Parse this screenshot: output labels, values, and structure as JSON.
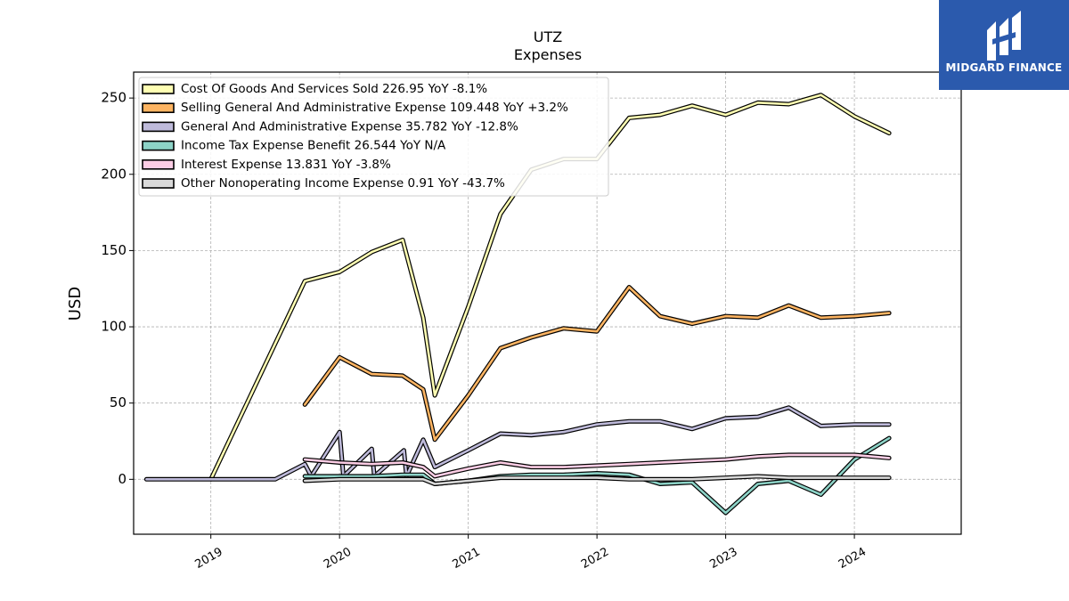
{
  "brand": {
    "name": "MIDGARD FINANCE",
    "bg_color": "#2b5aad"
  },
  "chart_data": {
    "type": "line",
    "title": "UTZ",
    "subtitle": "Expenses",
    "ylabel": "USD",
    "xlabel": "",
    "ylim": [
      -36,
      267
    ],
    "xlim": [
      2018.4,
      2024.83
    ],
    "grid": true,
    "legend_position": "top-left",
    "x_ticks": [
      {
        "value": 2019,
        "label": "2019"
      },
      {
        "value": 2020,
        "label": "2020"
      },
      {
        "value": 2021,
        "label": "2021"
      },
      {
        "value": 2022,
        "label": "2022"
      },
      {
        "value": 2023,
        "label": "2023"
      },
      {
        "value": 2024,
        "label": "2024"
      }
    ],
    "y_ticks": [
      0,
      50,
      100,
      150,
      200,
      250
    ],
    "series": [
      {
        "name": "Cost Of Goods And Services Sold  226.95 YoY -8.1%",
        "color": "#ffffb3",
        "points": [
          [
            2019.0,
            0
          ],
          [
            2019.73,
            130
          ],
          [
            2020.0,
            136
          ],
          [
            2020.25,
            149
          ],
          [
            2020.49,
            157
          ],
          [
            2020.65,
            106
          ],
          [
            2020.74,
            55
          ],
          [
            2021.0,
            113
          ],
          [
            2021.25,
            174
          ],
          [
            2021.49,
            203
          ],
          [
            2021.74,
            210
          ],
          [
            2022.0,
            210
          ],
          [
            2022.25,
            237
          ],
          [
            2022.49,
            239
          ],
          [
            2022.74,
            245
          ],
          [
            2023.0,
            239
          ],
          [
            2023.25,
            247
          ],
          [
            2023.49,
            246
          ],
          [
            2023.74,
            252
          ],
          [
            2024.0,
            238
          ],
          [
            2024.27,
            227
          ]
        ]
      },
      {
        "name": "Selling General And Administrative Expense  109.448 YoY +3.2%",
        "color": "#fdb462",
        "points": [
          [
            2019.73,
            49
          ],
          [
            2020.0,
            80
          ],
          [
            2020.25,
            69
          ],
          [
            2020.49,
            68
          ],
          [
            2020.65,
            59
          ],
          [
            2020.74,
            26
          ],
          [
            2021.0,
            55
          ],
          [
            2021.25,
            86
          ],
          [
            2021.49,
            93
          ],
          [
            2021.74,
            99
          ],
          [
            2022.0,
            97
          ],
          [
            2022.25,
            126
          ],
          [
            2022.49,
            107
          ],
          [
            2022.74,
            102
          ],
          [
            2023.0,
            107
          ],
          [
            2023.25,
            106
          ],
          [
            2023.49,
            114
          ],
          [
            2023.74,
            106
          ],
          [
            2024.0,
            107
          ],
          [
            2024.27,
            109
          ]
        ]
      },
      {
        "name": "General And Administrative Expense  35.782 YoY -12.8%",
        "color": "#bebada",
        "points": [
          [
            2018.5,
            0
          ],
          [
            2019.0,
            0
          ],
          [
            2019.5,
            0
          ],
          [
            2019.73,
            10
          ],
          [
            2019.78,
            2
          ],
          [
            2020.0,
            31
          ],
          [
            2020.03,
            2
          ],
          [
            2020.25,
            20
          ],
          [
            2020.27,
            2
          ],
          [
            2020.5,
            19
          ],
          [
            2020.52,
            2
          ],
          [
            2020.65,
            26
          ],
          [
            2020.74,
            8
          ],
          [
            2021.0,
            19
          ],
          [
            2021.25,
            30
          ],
          [
            2021.49,
            29
          ],
          [
            2021.74,
            31
          ],
          [
            2022.0,
            36
          ],
          [
            2022.25,
            38
          ],
          [
            2022.49,
            38
          ],
          [
            2022.74,
            33
          ],
          [
            2023.0,
            40
          ],
          [
            2023.25,
            41
          ],
          [
            2023.49,
            47
          ],
          [
            2023.74,
            35
          ],
          [
            2024.0,
            36
          ],
          [
            2024.27,
            36
          ]
        ]
      },
      {
        "name": "Income Tax Expense Benefit  26.544 YoY N/A",
        "color": "#8dd3c7",
        "points": [
          [
            2019.73,
            2
          ],
          [
            2020.0,
            2
          ],
          [
            2020.25,
            2
          ],
          [
            2020.49,
            3
          ],
          [
            2020.65,
            3
          ],
          [
            2020.74,
            -3
          ],
          [
            2021.0,
            -1
          ],
          [
            2021.25,
            2
          ],
          [
            2021.49,
            3
          ],
          [
            2021.74,
            3
          ],
          [
            2022.0,
            4
          ],
          [
            2022.25,
            3
          ],
          [
            2022.49,
            -3
          ],
          [
            2022.74,
            -2
          ],
          [
            2023.0,
            -22
          ],
          [
            2023.25,
            -3
          ],
          [
            2023.49,
            -1
          ],
          [
            2023.74,
            -10
          ],
          [
            2024.0,
            13
          ],
          [
            2024.27,
            27
          ]
        ]
      },
      {
        "name": "Interest Expense  13.831 YoY -3.8%",
        "color": "#fccde5",
        "points": [
          [
            2019.73,
            13
          ],
          [
            2020.0,
            11
          ],
          [
            2020.25,
            10
          ],
          [
            2020.49,
            11
          ],
          [
            2020.65,
            8
          ],
          [
            2020.74,
            2
          ],
          [
            2021.0,
            7
          ],
          [
            2021.25,
            11
          ],
          [
            2021.49,
            8
          ],
          [
            2021.74,
            8
          ],
          [
            2022.0,
            9
          ],
          [
            2022.25,
            10
          ],
          [
            2022.49,
            11
          ],
          [
            2022.74,
            12
          ],
          [
            2023.0,
            13
          ],
          [
            2023.25,
            15
          ],
          [
            2023.49,
            16
          ],
          [
            2023.74,
            16
          ],
          [
            2024.0,
            16
          ],
          [
            2024.27,
            14
          ]
        ]
      },
      {
        "name": "Other Nonoperating Income Expense  0.91 YoY -43.7%",
        "color": "#d9d9d9",
        "points": [
          [
            2019.73,
            -1
          ],
          [
            2020.0,
            0
          ],
          [
            2020.25,
            0
          ],
          [
            2020.49,
            0
          ],
          [
            2020.65,
            0
          ],
          [
            2020.74,
            -3
          ],
          [
            2021.0,
            -1
          ],
          [
            2021.25,
            1
          ],
          [
            2021.49,
            1
          ],
          [
            2021.74,
            1
          ],
          [
            2022.0,
            1
          ],
          [
            2022.25,
            0
          ],
          [
            2022.49,
            0
          ],
          [
            2022.74,
            0
          ],
          [
            2023.0,
            1
          ],
          [
            2023.25,
            2
          ],
          [
            2023.49,
            1
          ],
          [
            2023.74,
            1
          ],
          [
            2024.0,
            1
          ],
          [
            2024.27,
            1
          ]
        ]
      }
    ]
  }
}
